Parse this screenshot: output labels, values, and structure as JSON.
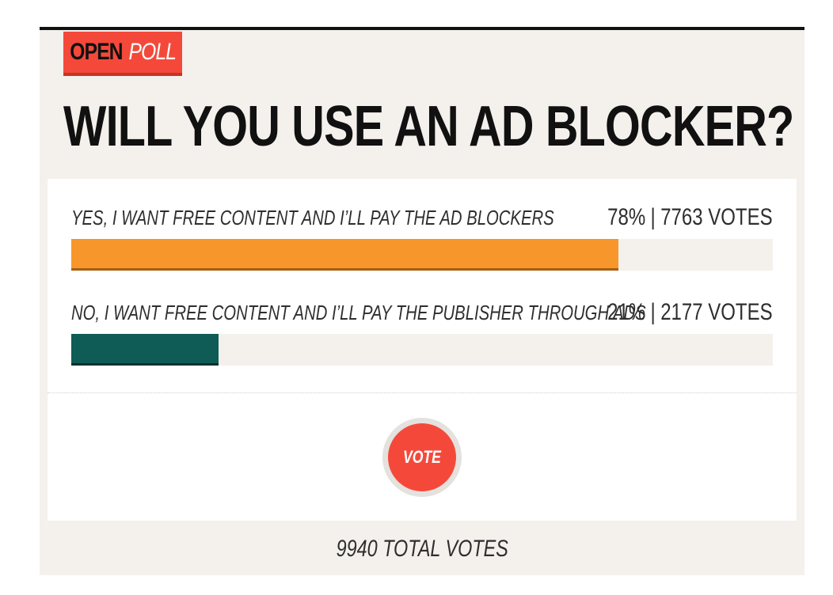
{
  "badge": {
    "open_label": "OPEN",
    "poll_label": "POLL"
  },
  "question": "WILL YOU USE AN AD BLOCKER?",
  "options": [
    {
      "label": "YES, I WANT FREE CONTENT AND I’LL PAY THE AD BLOCKERS",
      "percent_label": "78%",
      "separator": "|",
      "votes_label": "7763 VOTES",
      "percent": 78,
      "color": "#f7962a",
      "accent": "#a85e12"
    },
    {
      "label": "NO, I WANT FREE CONTENT AND I’LL PAY THE PUBLISHER THROUGH ADS",
      "percent_label": "21%",
      "separator": "|",
      "votes_label": "2177 VOTES",
      "percent": 21,
      "color": "#0e5c55",
      "accent": "#08302c"
    }
  ],
  "vote_button_label": "VOTE",
  "total_votes_label": "9940 TOTAL VOTES",
  "colors": {
    "brand_red": "#f4493a",
    "background": "#f4f0ec"
  }
}
